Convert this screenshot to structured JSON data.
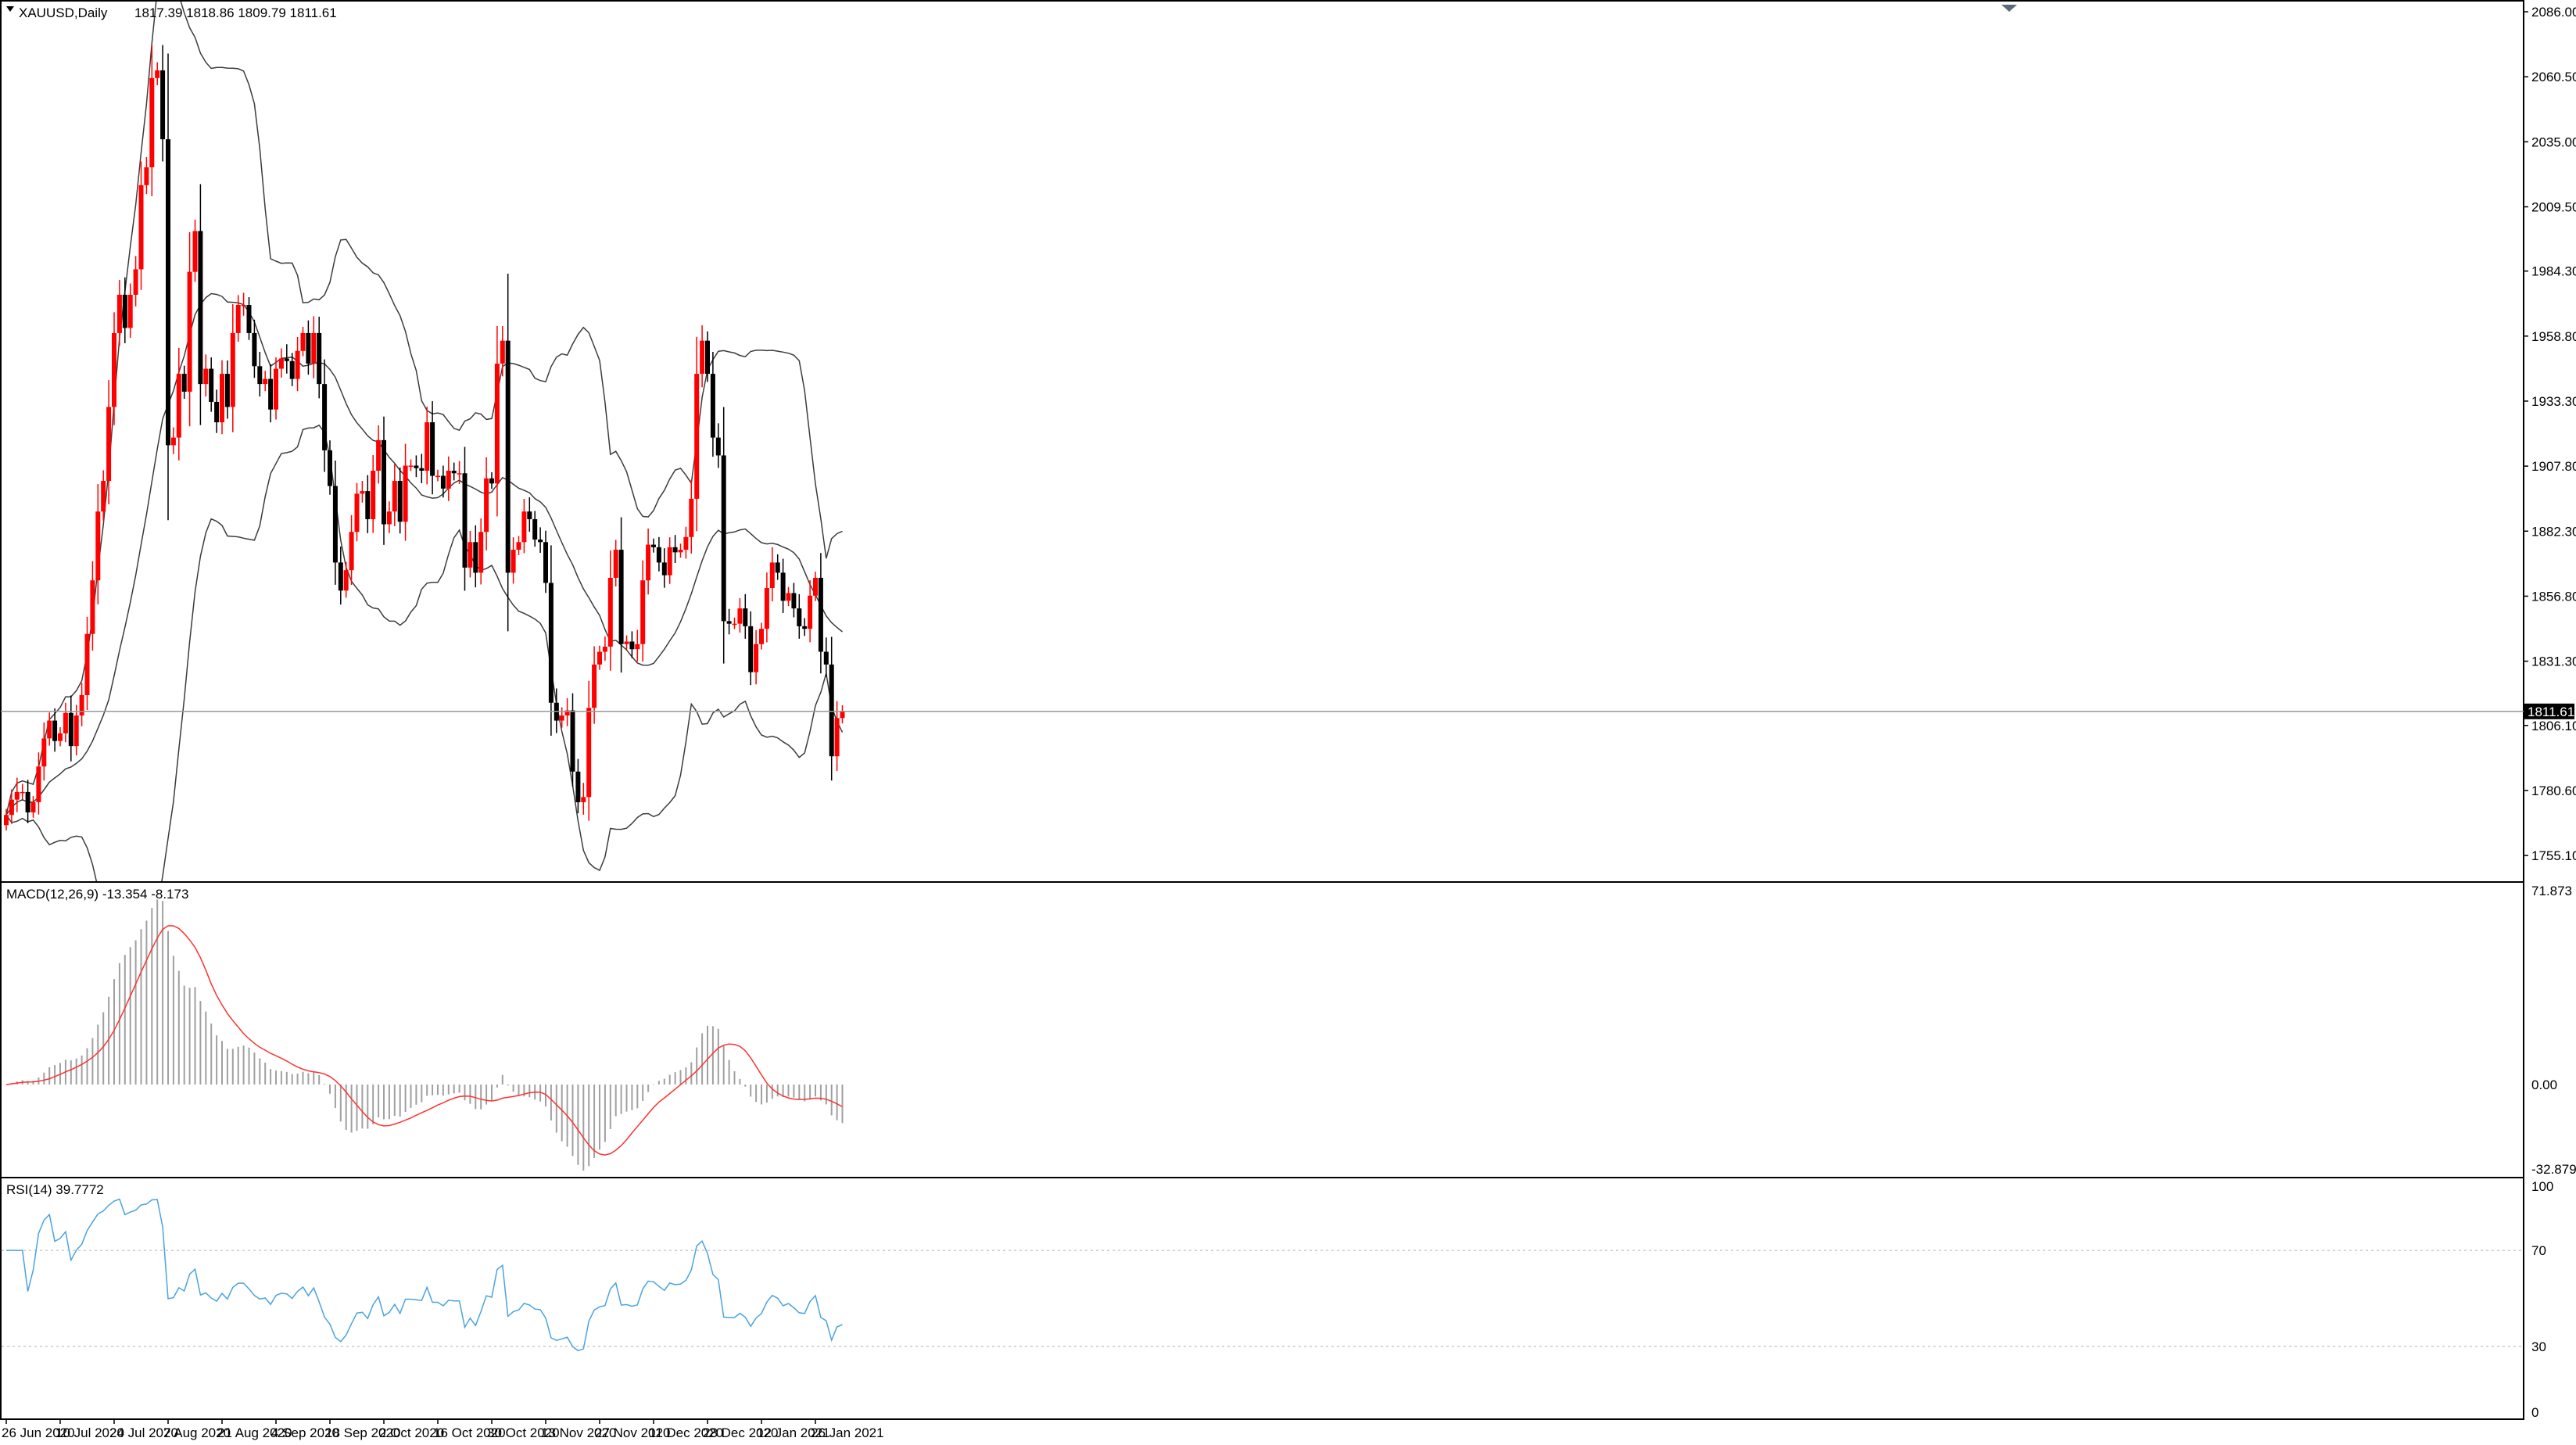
{
  "window": {
    "symbol_label": "XAUUSD,Daily",
    "ohlc_label": "1817.39 1818.86 1809.79 1811.61"
  },
  "colors": {
    "bull": "#ff0000",
    "bear": "#000000",
    "bands": "#3c3c3c",
    "macd_hist": "#a0a0a0",
    "macd_signal": "#ff3030",
    "rsi": "#4aa3df",
    "price_line": "#808080",
    "current_price_box": "#000000"
  },
  "chart_data": [
    {
      "type": "candlestick",
      "name": "price",
      "ylim": [
        1745,
        2090
      ],
      "price_ticks": [
        "2086.00",
        "2060.50",
        "2035.00",
        "2009.50",
        "1984.30",
        "1958.80",
        "1933.30",
        "1907.80",
        "1882.30",
        "1856.80",
        "1831.30",
        "1806.10",
        "1780.60",
        "1755.10"
      ],
      "current_price": 1811.61,
      "current_price_label": "1811.61",
      "date_labels": [
        "26 Jun 2020",
        "10 Jul 2020",
        "24 Jul 2020",
        "7 Aug 2020",
        "21 Aug 2020",
        "4 Sep 2020",
        "18 Sep 2020",
        "2 Oct 2020",
        "16 Oct 2020",
        "30 Oct 2020",
        "13 Nov 2020",
        "27 Nov 2020",
        "11 Dec 2020",
        "28 Dec 2020",
        "12 Jan 2021",
        "26 Jan 2021"
      ],
      "close": [
        1771,
        1777,
        1780,
        1780,
        1772,
        1776,
        1790,
        1801,
        1808,
        1800,
        1803,
        1811,
        1798,
        1810,
        1818,
        1842,
        1863,
        1890,
        1902,
        1931,
        1960,
        1975,
        1962,
        1975,
        1985,
        2018,
        2025,
        2060,
        2063,
        2036,
        1916,
        1919,
        1944,
        1937,
        1984,
        2000,
        1940,
        1946,
        1933,
        1925,
        1944,
        1931,
        1960,
        1971,
        1971,
        1960,
        1947,
        1940,
        1942,
        1930,
        1946,
        1950,
        1949,
        1942,
        1953,
        1960,
        1948,
        1960,
        1940,
        1914,
        1900,
        1870,
        1859,
        1867,
        1882,
        1897,
        1898,
        1887,
        1906,
        1918,
        1885,
        1890,
        1902,
        1886,
        1908,
        1908,
        1907,
        1906,
        1925,
        1904,
        1904,
        1899,
        1906,
        1905,
        1905,
        1868,
        1878,
        1866,
        1882,
        1903,
        1901,
        1948,
        1957,
        1866,
        1875,
        1878,
        1890,
        1887,
        1879,
        1878,
        1862,
        1815,
        1808,
        1810,
        1812,
        1788,
        1776,
        1778,
        1813,
        1830,
        1835,
        1837,
        1864,
        1875,
        1838,
        1839,
        1836,
        1838,
        1863,
        1877,
        1876,
        1870,
        1865,
        1876,
        1874,
        1875,
        1880,
        1895,
        1944,
        1957,
        1944,
        1919,
        1912,
        1847,
        1846,
        1846,
        1852,
        1845,
        1827,
        1838,
        1844,
        1860,
        1870,
        1866,
        1855,
        1858,
        1852,
        1845,
        1844,
        1857,
        1864,
        1835,
        1830,
        1794,
        1809,
        1811.61
      ]
    },
    {
      "type": "bar",
      "name": "MACD(12,26,9)",
      "label": "MACD(12,26,9) -13.354 -8.173",
      "ylim": [
        -32.879,
        71.873
      ],
      "tick_labels": [
        "71.873",
        "0.00",
        "-32.879"
      ],
      "main_value": -13.354,
      "signal_value": -8.173
    },
    {
      "type": "line",
      "name": "RSI(14)",
      "label": "RSI(14) 39.7772",
      "ylim": [
        0,
        100
      ],
      "tick_labels": [
        "100",
        "70",
        "30",
        "0"
      ],
      "levels": [
        70,
        30
      ],
      "last_value": 39.7772
    }
  ]
}
